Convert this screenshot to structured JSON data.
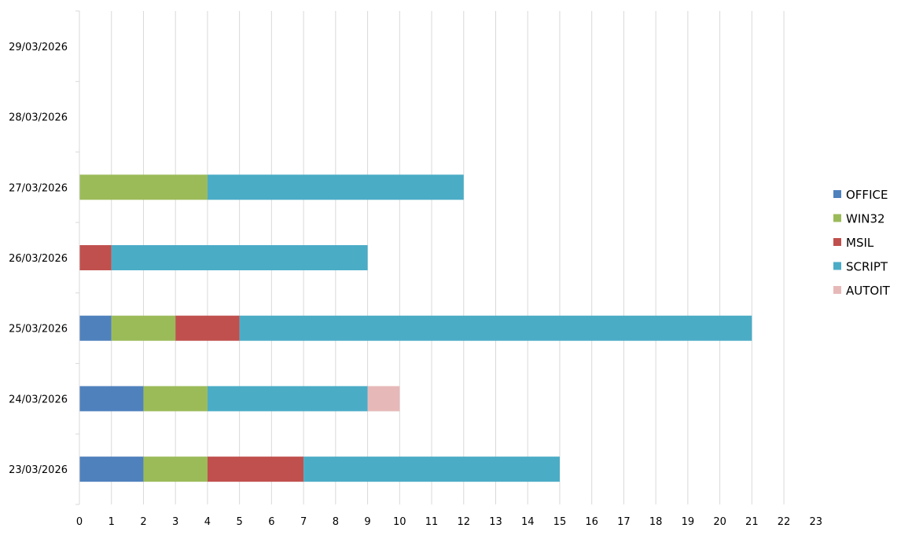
{
  "chart_data": {
    "type": "bar",
    "orientation": "horizontal",
    "stacked": true,
    "title": "",
    "xlabel": "",
    "ylabel": "",
    "xlim": [
      0,
      23
    ],
    "x_ticks": [
      "0",
      "1",
      "2",
      "3",
      "4",
      "5",
      "6",
      "7",
      "8",
      "9",
      "10",
      "11",
      "12",
      "13",
      "14",
      "15",
      "16",
      "17",
      "18",
      "19",
      "20",
      "21",
      "22",
      "23"
    ],
    "grid": true,
    "legend_position": "right",
    "categories": [
      "23/03/2026",
      "24/03/2026",
      "25/03/2026",
      "26/03/2026",
      "27/03/2026",
      "28/03/2026",
      "29/03/2026"
    ],
    "series": [
      {
        "name": "OFFICE",
        "color": "#4F81BD",
        "values": [
          2,
          2,
          1,
          0,
          0,
          0,
          0
        ]
      },
      {
        "name": "WIN32",
        "color": "#9BBB59",
        "values": [
          2,
          2,
          2,
          0,
          4,
          0,
          0
        ]
      },
      {
        "name": "MSIL",
        "color": "#C0504D",
        "values": [
          3,
          0,
          2,
          1,
          0,
          0,
          0
        ]
      },
      {
        "name": "SCRIPT",
        "color": "#4BACC6",
        "values": [
          8,
          5,
          16,
          8,
          8,
          0,
          0
        ]
      },
      {
        "name": "AUTOIT",
        "color": "#E6B9B8",
        "values": [
          0,
          1,
          0,
          0,
          0,
          0,
          0
        ]
      }
    ]
  }
}
